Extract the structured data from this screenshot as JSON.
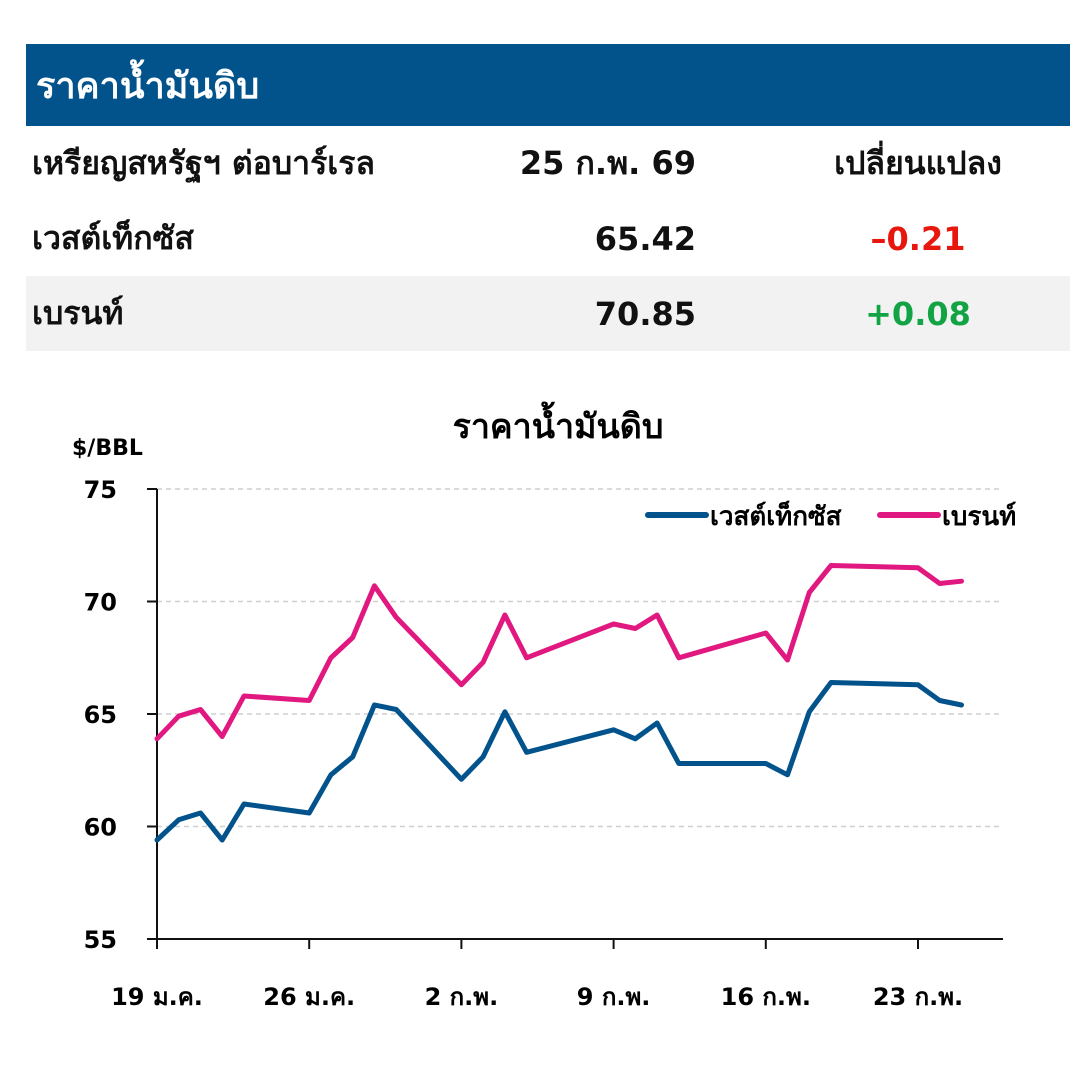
{
  "table": {
    "title": "ราคาน้ำมันดิบ",
    "header": {
      "name": "เหรียญสหรัฐฯ ต่อบาร์เรล",
      "date": "25 ก.พ. 69",
      "change": "เปลี่ยนแปลง"
    },
    "rows": [
      {
        "name": "เวสต์เท็กซัส",
        "value": "65.42",
        "change": "–0.21"
      },
      {
        "name": "เบรนท์",
        "value": "70.85",
        "change": "+0.08"
      }
    ],
    "colors": {
      "banner": "#02538c",
      "negative": "#e8170e",
      "positive": "#12a345"
    }
  },
  "chart_data": {
    "type": "line",
    "title": "ราคาน้ำมันดิบ",
    "ylabel": "$/BBL",
    "ylim": [
      55,
      75
    ],
    "yticks": [
      55,
      60,
      65,
      70,
      75
    ],
    "xticks": [
      "19 ม.ค.",
      "26 ม.ค.",
      "2 ก.พ.",
      "9 ก.พ.",
      "16 ก.พ.",
      "23 ก.พ."
    ],
    "xtick_days": [
      0,
      7,
      14,
      21,
      28,
      35
    ],
    "x": [
      0,
      1,
      2,
      3,
      4,
      7,
      8,
      9,
      10,
      11,
      14,
      15,
      16,
      17,
      21,
      22,
      23,
      24,
      28,
      29,
      30,
      31,
      35,
      36,
      37
    ],
    "grid": "horizontal-dashed",
    "legend_position": "top-right",
    "series": [
      {
        "name": "เวสต์เท็กซัส",
        "color": "#02538c",
        "values": [
          59.4,
          60.3,
          60.6,
          59.4,
          61.0,
          60.6,
          62.3,
          63.1,
          65.4,
          65.2,
          62.1,
          63.1,
          65.1,
          63.3,
          64.3,
          63.9,
          64.6,
          62.8,
          62.8,
          62.3,
          65.1,
          66.4,
          66.3,
          65.6,
          65.4
        ]
      },
      {
        "name": "เบรนท์",
        "color": "#e0187f",
        "values": [
          63.9,
          64.9,
          65.2,
          64.0,
          65.8,
          65.6,
          67.5,
          68.4,
          70.7,
          69.3,
          66.3,
          67.3,
          69.4,
          67.5,
          69.0,
          68.8,
          69.4,
          67.5,
          68.6,
          67.4,
          70.4,
          71.6,
          71.5,
          70.8,
          70.9
        ]
      }
    ]
  }
}
